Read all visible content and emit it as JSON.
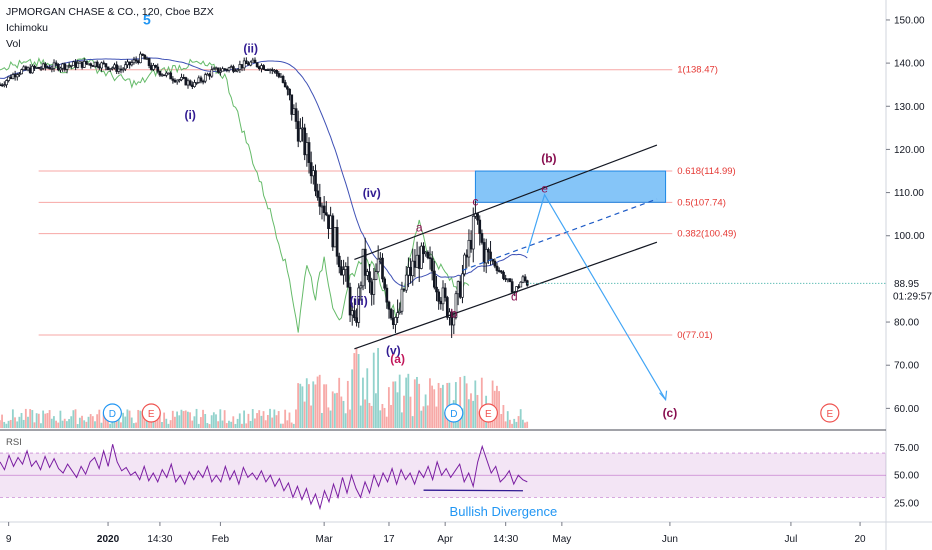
{
  "header": {
    "symbol_title": "JPMORGAN CHASE & CO., 120, Cboe BZX",
    "indicator_ichimoku": "Ichimoku",
    "indicator_volume": "Vol",
    "indicator_rsi": "RSI"
  },
  "chart_data": {
    "type": "candlestick",
    "price_axis": {
      "ticks": [
        "150.00",
        "140.00",
        "130.00",
        "120.00",
        "110.00",
        "100.00",
        "80.00",
        "70.00",
        "60.00"
      ],
      "last_price": "88.95",
      "countdown": "01:29:57",
      "range": [
        58,
        153
      ],
      "last_price_color": "#26a69a"
    },
    "time_axis": {
      "labels": [
        {
          "t": 0,
          "text": "9"
        },
        {
          "t": 23,
          "text": "2020"
        },
        {
          "t": 35,
          "text": "14:30"
        },
        {
          "t": 49,
          "text": "Feb"
        },
        {
          "t": 73,
          "text": "Mar"
        },
        {
          "t": 88,
          "text": "17"
        },
        {
          "t": 101,
          "text": "Apr"
        },
        {
          "t": 115,
          "text": "14:30"
        },
        {
          "t": 128,
          "text": "May"
        },
        {
          "t": 153,
          "text": "Jun"
        },
        {
          "t": 181,
          "text": "Jul"
        },
        {
          "t": 197,
          "text": "20"
        }
      ]
    },
    "fibonacci": [
      {
        "level": 1,
        "price": 138.47,
        "label": "1(138.47)"
      },
      {
        "level": 0.618,
        "price": 114.99,
        "label": "0.618(114.99)"
      },
      {
        "level": 0.5,
        "price": 107.74,
        "label": "0.5(107.74)"
      },
      {
        "level": 0.382,
        "price": 100.49,
        "label": "0.382(100.49)"
      },
      {
        "level": 0,
        "price": 77.01,
        "label": "0(77.01)"
      }
    ],
    "target_zone": {
      "price_low": 107.74,
      "price_high": 114.99,
      "t_start": 108,
      "t_end": 152
    },
    "channel": {
      "upper": {
        "t1": 80,
        "p1": 94.5,
        "t2": 150,
        "p2": 121.0
      },
      "lower": {
        "t1": 80,
        "p1": 73.8,
        "t2": 150,
        "p2": 98.5
      },
      "mid": {
        "t1": 105,
        "p1": 92.0,
        "t2": 150,
        "p2": 108.5
      }
    },
    "wave_labels": [
      {
        "text": "5",
        "t": 32,
        "p": 149.0,
        "color": "#2196f3"
      },
      {
        "text": "(ii)",
        "t": 56,
        "p": 142.5,
        "color": "#311b92"
      },
      {
        "text": "(i)",
        "t": 42,
        "p": 127.0,
        "color": "#311b92"
      },
      {
        "text": "(iv)",
        "t": 84,
        "p": 109.0,
        "color": "#311b92"
      },
      {
        "text": "(iii)",
        "t": 81,
        "p": 84.0,
        "color": "#311b92"
      },
      {
        "text": "(v)",
        "t": 89,
        "p": 72.5,
        "color": "#311b92"
      },
      {
        "text": "(a)",
        "t": 90,
        "p": 70.5,
        "color": "#c2185b"
      },
      {
        "text": "a",
        "t": 95,
        "p": 101.0,
        "color": "#880e4f"
      },
      {
        "text": "b",
        "t": 103,
        "p": 81.0,
        "color": "#880e4f"
      },
      {
        "text": "c",
        "t": 108,
        "p": 107.0,
        "color": "#880e4f"
      },
      {
        "text": "d",
        "t": 117,
        "p": 85.0,
        "color": "#880e4f"
      },
      {
        "text": "e",
        "t": 124,
        "p": 110.0,
        "color": "#880e4f"
      },
      {
        "text": "(b)",
        "t": 125,
        "p": 117.0,
        "color": "#880e4f"
      },
      {
        "text": "(c)",
        "t": 153,
        "p": 58.0,
        "color": "#880e4f"
      }
    ],
    "projection_path": [
      {
        "t": 120,
        "p": 96.0
      },
      {
        "t": 124,
        "p": 109.5
      },
      {
        "t": 152,
        "p": 62.0
      }
    ],
    "event_markers": [
      {
        "t": 24,
        "text": "D",
        "color": "#2196f3"
      },
      {
        "t": 33,
        "text": "E",
        "color": "#ef5350"
      },
      {
        "t": 103,
        "text": "D",
        "color": "#2196f3"
      },
      {
        "t": 111,
        "text": "E",
        "color": "#ef5350"
      },
      {
        "t": 190,
        "text": "E",
        "color": "#ef5350"
      }
    ],
    "rsi": {
      "ticks": [
        "75.00",
        "50.00",
        "25.00"
      ],
      "band": [
        30,
        70
      ],
      "annotation": "Bullish Divergence",
      "last_value": 44,
      "values": [
        62,
        55,
        68,
        58,
        66,
        60,
        72,
        58,
        63,
        55,
        67,
        57,
        65,
        56,
        52,
        60,
        54,
        48,
        58,
        51,
        62,
        66,
        56,
        72,
        58,
        78,
        62,
        54,
        57,
        50,
        53,
        46,
        58,
        45,
        52,
        44,
        55,
        48,
        60,
        44,
        50,
        42,
        53,
        46,
        54,
        48,
        58,
        44,
        50,
        44,
        58,
        46,
        54,
        42,
        57,
        48,
        52,
        46,
        54,
        44,
        50,
        40,
        47,
        36,
        43,
        30,
        40,
        28,
        38,
        24,
        33,
        20,
        36,
        26,
        42,
        30,
        48,
        34,
        50,
        38,
        30,
        44,
        34,
        50,
        40,
        52,
        44,
        56,
        42,
        55,
        46,
        52,
        42,
        54,
        48,
        58,
        46,
        62,
        50,
        56,
        48,
        54,
        60,
        44,
        52,
        40,
        62,
        76,
        64,
        52,
        58,
        44,
        48,
        54,
        42,
        50,
        46,
        44
      ],
      "divergence_line": {
        "t1": 96,
        "v1": 36.5,
        "t2": 119,
        "v2": 36.0
      }
    }
  }
}
